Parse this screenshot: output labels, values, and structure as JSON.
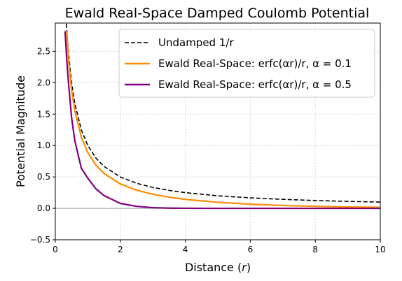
{
  "chart_data": {
    "type": "line",
    "title": "Ewald Real-Space Damped Coulomb Potential",
    "xlabel": "Distance (r)",
    "ylabel": "Potential Magnitude",
    "xlim": [
      0,
      10
    ],
    "ylim": [
      -0.5,
      2.95
    ],
    "xticks": [
      "0",
      "2",
      "4",
      "6",
      "8",
      "10"
    ],
    "yticks": [
      "−0.5",
      "0.0",
      "0.5",
      "1.0",
      "1.5",
      "2.0",
      "2.5"
    ],
    "xtick_values": [
      0,
      2,
      4,
      6,
      8,
      10
    ],
    "ytick_values": [
      -0.5,
      0.0,
      0.5,
      1.0,
      1.5,
      2.0,
      2.5
    ],
    "grid": true,
    "legend_position": "top-right",
    "series": [
      {
        "name": "Undamped 1/r",
        "color": "#000000",
        "dash": "dashed",
        "x": [
          0.34,
          0.4,
          0.5,
          0.6,
          0.8,
          1.0,
          1.25,
          1.5,
          2.0,
          2.5,
          3.0,
          3.5,
          4.0,
          5.0,
          6.0,
          7.0,
          8.0,
          9.0,
          10.0
        ],
        "y": [
          2.94,
          2.5,
          2.0,
          1.667,
          1.25,
          1.0,
          0.8,
          0.667,
          0.5,
          0.4,
          0.333,
          0.286,
          0.25,
          0.2,
          0.167,
          0.143,
          0.125,
          0.111,
          0.1
        ]
      },
      {
        "name": "Ewald Real-Space: erfc(αr)/r, α = 0.1",
        "color": "#ff8c00",
        "dash": "solid",
        "x": [
          0.35,
          0.4,
          0.5,
          0.6,
          0.8,
          1.0,
          1.25,
          1.5,
          2.0,
          2.5,
          3.0,
          3.5,
          4.0,
          5.0,
          6.0,
          7.0,
          8.0,
          9.0,
          10.0
        ],
        "y": [
          2.82,
          2.387,
          1.887,
          1.554,
          1.137,
          0.887,
          0.688,
          0.555,
          0.388,
          0.289,
          0.224,
          0.178,
          0.143,
          0.096,
          0.066,
          0.046,
          0.032,
          0.022,
          0.016
        ]
      },
      {
        "name": "Ewald Real-Space: erfc(αr)/r, α = 0.5",
        "color": "#800080",
        "dash": "solid",
        "x": [
          0.3,
          0.35,
          0.4,
          0.5,
          0.6,
          0.8,
          1.0,
          1.25,
          1.5,
          2.0,
          2.5,
          3.0,
          3.5,
          4.0,
          5.0,
          6.0,
          8.0,
          10.0
        ],
        "y": [
          2.82,
          2.37,
          2.03,
          1.444,
          1.077,
          0.639,
          0.4795,
          0.3097,
          0.2024,
          0.0786,
          0.0322,
          0.0112,
          0.0039,
          0.0012,
          0.0001,
          0.0,
          0.0,
          0.0
        ]
      }
    ]
  }
}
